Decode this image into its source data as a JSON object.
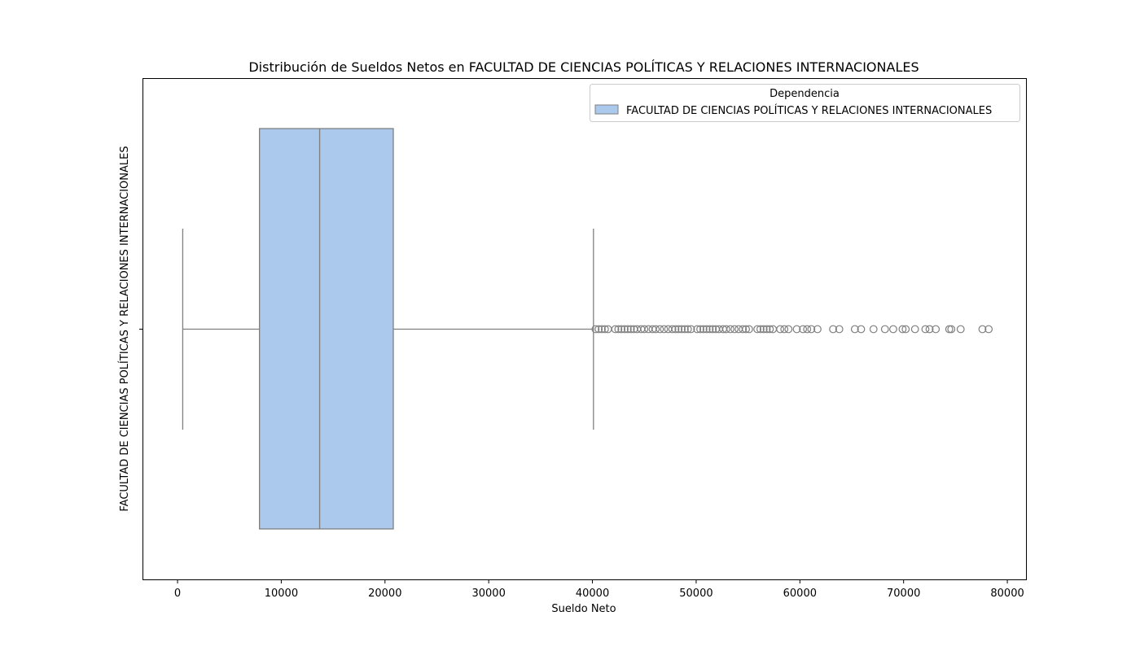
{
  "chart_data": {
    "type": "boxplot",
    "title": "Distribución de Sueldos Netos en FACULTAD DE CIENCIAS POLÍTICAS Y RELACIONES INTERNACIONALES",
    "xlabel": "Sueldo Neto",
    "ylabel": "FACULTAD DE CIENCIAS POLÍTICAS Y RELACIONES INTERNACIONALES",
    "xlim": [
      -3300,
      81800
    ],
    "xticks": [
      0,
      10000,
      20000,
      30000,
      40000,
      50000,
      60000,
      70000,
      80000
    ],
    "xtick_labels": [
      "0",
      "10000",
      "20000",
      "30000",
      "40000",
      "50000",
      "60000",
      "70000",
      "80000"
    ],
    "grid": false,
    "orientation": "horizontal",
    "legend": {
      "title": "Dependencia",
      "placement": "top-right",
      "entries": [
        "FACULTAD DE CIENCIAS POLÍTICAS Y RELACIONES INTERNACIONALES"
      ]
    },
    "series": [
      {
        "name": "FACULTAD DE CIENCIAS POLÍTICAS Y RELACIONES INTERNACIONALES",
        "color": "#abc9ec",
        "edge_color": "#7f7f7f",
        "whisker_low": 500,
        "q1": 7900,
        "median": 13700,
        "q3": 20800,
        "whisker_high": 40100,
        "outliers": [
          40300,
          40600,
          40900,
          41200,
          41500,
          42200,
          42500,
          42800,
          43100,
          43400,
          43700,
          44000,
          44300,
          44700,
          45000,
          45400,
          45800,
          46100,
          46500,
          46900,
          47300,
          47700,
          48000,
          48300,
          48600,
          48900,
          49200,
          49500,
          50100,
          50400,
          50700,
          51000,
          51300,
          51600,
          51900,
          52200,
          52600,
          52900,
          53300,
          53700,
          54100,
          54500,
          54800,
          55100,
          55900,
          56200,
          56500,
          56800,
          57100,
          57400,
          58100,
          58500,
          58900,
          59700,
          60300,
          60700,
          61100,
          61700,
          63200,
          63800,
          65300,
          65900,
          67100,
          68200,
          69000,
          69900,
          70200,
          71100,
          72100,
          72500,
          73100,
          74400,
          74600,
          75500,
          77600,
          78200
        ]
      }
    ]
  }
}
